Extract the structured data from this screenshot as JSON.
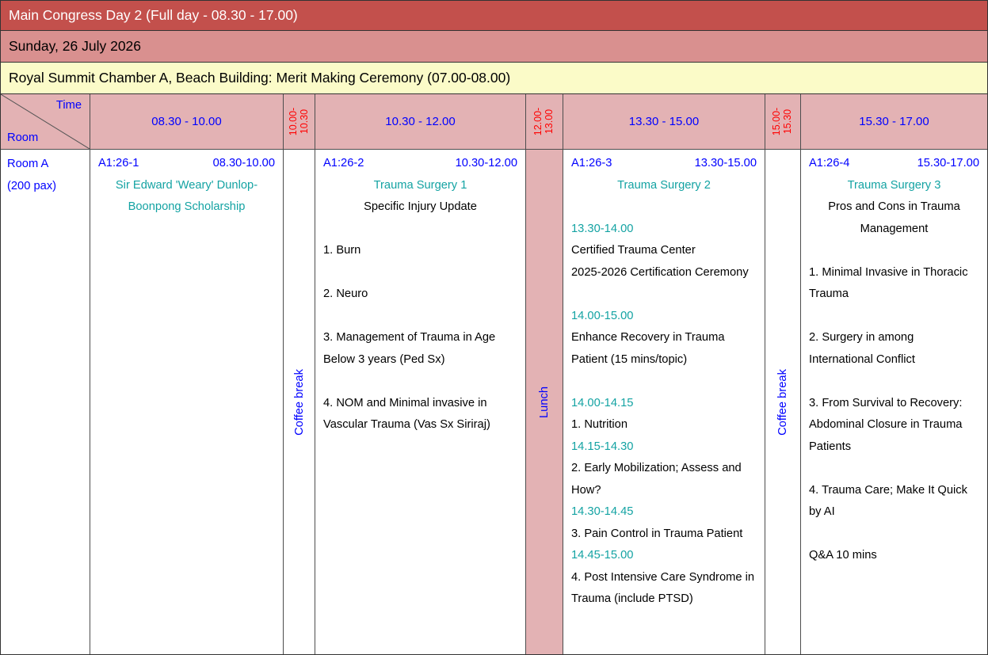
{
  "banners": {
    "title": "Main Congress Day 2 (Full day - 08.30 - 17.00)",
    "date": "Sunday, 26 July 2026",
    "venue": "Royal Summit Chamber A, Beach Building: Merit Making Ceremony (07.00-08.00)"
  },
  "header": {
    "time_label": "Time",
    "room_label": "Room",
    "columns": [
      {
        "type": "session",
        "label": "08.30 - 10.00"
      },
      {
        "type": "break",
        "lines": [
          "10.00-",
          "10.30"
        ]
      },
      {
        "type": "session",
        "label": "10.30 - 12.00"
      },
      {
        "type": "break",
        "lines": [
          "12.00-",
          "13.00"
        ]
      },
      {
        "type": "session",
        "label": "13.30 - 15.00"
      },
      {
        "type": "break",
        "lines": [
          "15.00-",
          "15.30"
        ]
      },
      {
        "type": "session",
        "label": "15.30 - 17.00"
      }
    ]
  },
  "room": {
    "name": "Room A",
    "capacity": "(200 pax)"
  },
  "breaks": [
    {
      "label": "Coffee break"
    },
    {
      "label": "Lunch"
    },
    {
      "label": "Coffee break"
    }
  ],
  "sessions": [
    {
      "code": "A1:26-1",
      "time": "08.30-10.00",
      "lines": [
        {
          "s": "title",
          "t": "Sir Edward 'Weary' Dunlop-\nBoonpong Scholarship"
        }
      ]
    },
    {
      "code": "A1:26-2",
      "time": "10.30-12.00",
      "lines": [
        {
          "s": "title",
          "t": "Trauma Surgery 1"
        },
        {
          "s": "subtitle",
          "t": "Specific Injury Update"
        },
        {
          "s": "gap",
          "t": ""
        },
        {
          "s": "item",
          "t": "1. Burn"
        },
        {
          "s": "gap",
          "t": ""
        },
        {
          "s": "item",
          "t": "2. Neuro"
        },
        {
          "s": "gap",
          "t": ""
        },
        {
          "s": "item",
          "t": "3. Management of Trauma in Age Below 3 years (Ped Sx)"
        },
        {
          "s": "gap",
          "t": ""
        },
        {
          "s": "item",
          "t": "4. NOM and Minimal invasive in Vascular Trauma (Vas Sx Siriraj)"
        }
      ]
    },
    {
      "code": "A1:26-3",
      "time": "13.30-15.00",
      "lines": [
        {
          "s": "title",
          "t": "Trauma Surgery 2"
        },
        {
          "s": "gap",
          "t": ""
        },
        {
          "s": "time",
          "t": "13.30-14.00"
        },
        {
          "s": "item",
          "t": "Certified Trauma Center\n2025-2026 Certification Ceremony"
        },
        {
          "s": "gap",
          "t": ""
        },
        {
          "s": "time",
          "t": "14.00-15.00"
        },
        {
          "s": "item",
          "t": "Enhance Recovery in Trauma Patient (15 mins/topic)"
        },
        {
          "s": "gap",
          "t": ""
        },
        {
          "s": "time",
          "t": "14.00-14.15"
        },
        {
          "s": "item",
          "t": "1. Nutrition"
        },
        {
          "s": "time",
          "t": "14.15-14.30"
        },
        {
          "s": "item",
          "t": "2. Early Mobilization; Assess and How?"
        },
        {
          "s": "time",
          "t": "14.30-14.45"
        },
        {
          "s": "item",
          "t": "3. Pain Control in Trauma Patient"
        },
        {
          "s": "time",
          "t": "14.45-15.00"
        },
        {
          "s": "item",
          "t": "4. Post Intensive Care Syndrome in Trauma (include PTSD)"
        }
      ]
    },
    {
      "code": "A1:26-4",
      "time": "15.30-17.00",
      "lines": [
        {
          "s": "title",
          "t": "Trauma Surgery 3"
        },
        {
          "s": "subtitle",
          "t": "Pros and Cons in Trauma Management"
        },
        {
          "s": "gap",
          "t": ""
        },
        {
          "s": "item",
          "t": "1. Minimal Invasive in Thoracic Trauma"
        },
        {
          "s": "gap",
          "t": ""
        },
        {
          "s": "item",
          "t": "2. Surgery in among International Conflict"
        },
        {
          "s": "gap",
          "t": ""
        },
        {
          "s": "item",
          "t": "3. From Survival to Recovery: Abdominal Closure in Trauma Patients"
        },
        {
          "s": "gap",
          "t": ""
        },
        {
          "s": "item",
          "t": "4. Trauma Care; Make It Quick by AI"
        },
        {
          "s": "gap",
          "t": ""
        },
        {
          "s": "item",
          "t": "Q&A 10 mins"
        }
      ]
    }
  ],
  "colors": {
    "banner_red": "#C3504C",
    "banner_pink": "#D9908F",
    "banner_yellow": "#FBFBC8",
    "cell_pink": "#E3B2B4",
    "accent_blue": "#0000FF",
    "accent_red": "#FF0000",
    "accent_teal": "#14A3A3"
  }
}
